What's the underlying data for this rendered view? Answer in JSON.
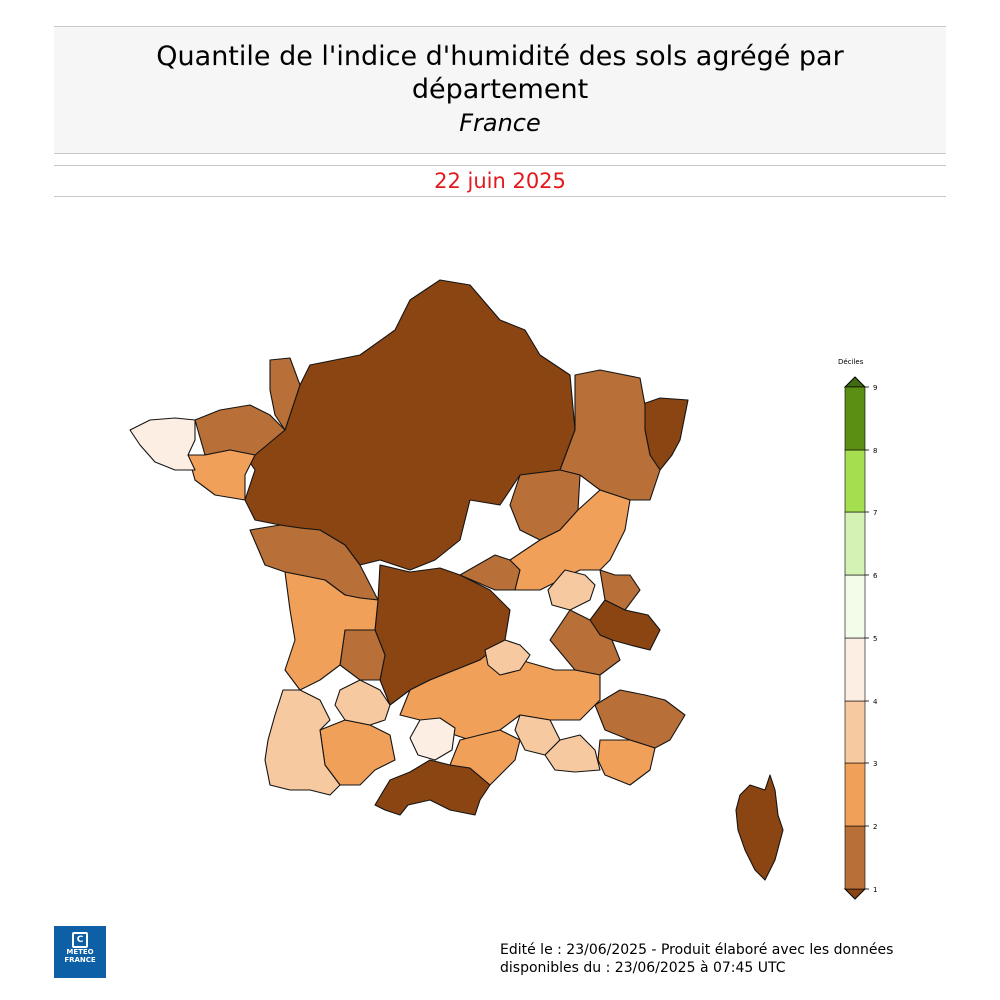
{
  "header": {
    "title": "Quantile de l'indice d'humidité des sols agrégé par département",
    "subtitle": "France"
  },
  "date": "22 juin 2025",
  "legend": {
    "title": "Déciles",
    "ticks": [
      "1",
      "2",
      "3",
      "4",
      "5",
      "6",
      "7",
      "8",
      "9"
    ],
    "class_colors": [
      "#b97038",
      "#f1a05a",
      "#f7c9a0",
      "#fdeee4",
      "#f3fbe9",
      "#d4f2b4",
      "#a5de4e",
      "#78c01c",
      "#5a8f13"
    ],
    "under_color": "#8b4513",
    "over_color": "#3f6b12"
  },
  "map": {
    "region": "France",
    "colors": {
      "decile_below_1": "#8b4513",
      "decile_1_2": "#b97038",
      "decile_2_3": "#f1a05a",
      "decile_3_4": "#f7c9a0",
      "decile_4_5": "#fdeee4"
    }
  },
  "footer": {
    "line1": "Edité le : 23/06/2025 - Produit élaboré avec les données",
    "line2": "disponibles du : 23/06/2025 à 07:45 UTC"
  },
  "logo": {
    "line1": "METEO",
    "line2": "FRANCE",
    "icon": "meteo-france-logo-icon"
  }
}
